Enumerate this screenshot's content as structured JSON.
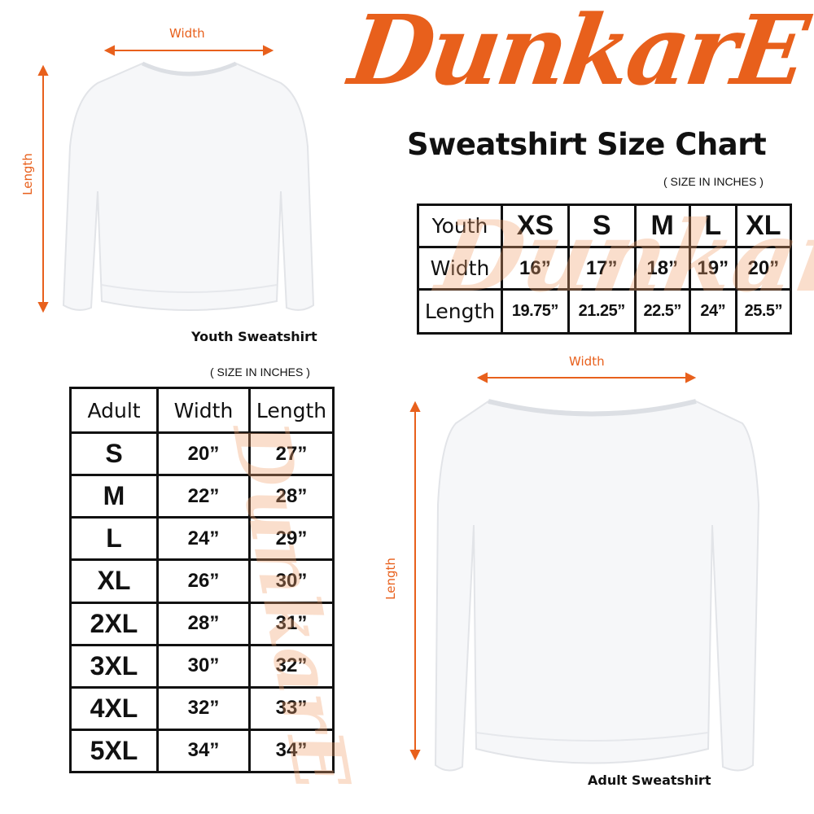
{
  "brand": {
    "logo_text": "DunkarE",
    "color": "#e8601c"
  },
  "title": "Sweatshirt Size Chart",
  "youth": {
    "note": "( SIZE IN INCHES )",
    "caption": "Youth Sweatshirt",
    "width_label": "Width",
    "length_label": "Length",
    "table": {
      "header": [
        "Youth",
        "XS",
        "S",
        "M",
        "L",
        "XL"
      ],
      "rows": [
        [
          "Width",
          "16”",
          "17”",
          "18”",
          "19”",
          "20”"
        ],
        [
          "Length",
          "19.75”",
          "21.25”",
          "22.5”",
          "24”",
          "25.5”"
        ]
      ]
    }
  },
  "adult": {
    "note": "( SIZE IN INCHES )",
    "caption": "Adult Sweatshirt",
    "width_label": "Width",
    "length_label": "Length",
    "table": {
      "header": [
        "Adult",
        "Width",
        "Length"
      ],
      "rows": [
        [
          "S",
          "20”",
          "27”"
        ],
        [
          "M",
          "22”",
          "28”"
        ],
        [
          "L",
          "24”",
          "29”"
        ],
        [
          "XL",
          "26”",
          "30”"
        ],
        [
          "2XL",
          "28”",
          "31”"
        ],
        [
          "3XL",
          "30”",
          "32”"
        ],
        [
          "4XL",
          "32”",
          "33”"
        ],
        [
          "5XL",
          "34”",
          "34”"
        ]
      ]
    }
  }
}
